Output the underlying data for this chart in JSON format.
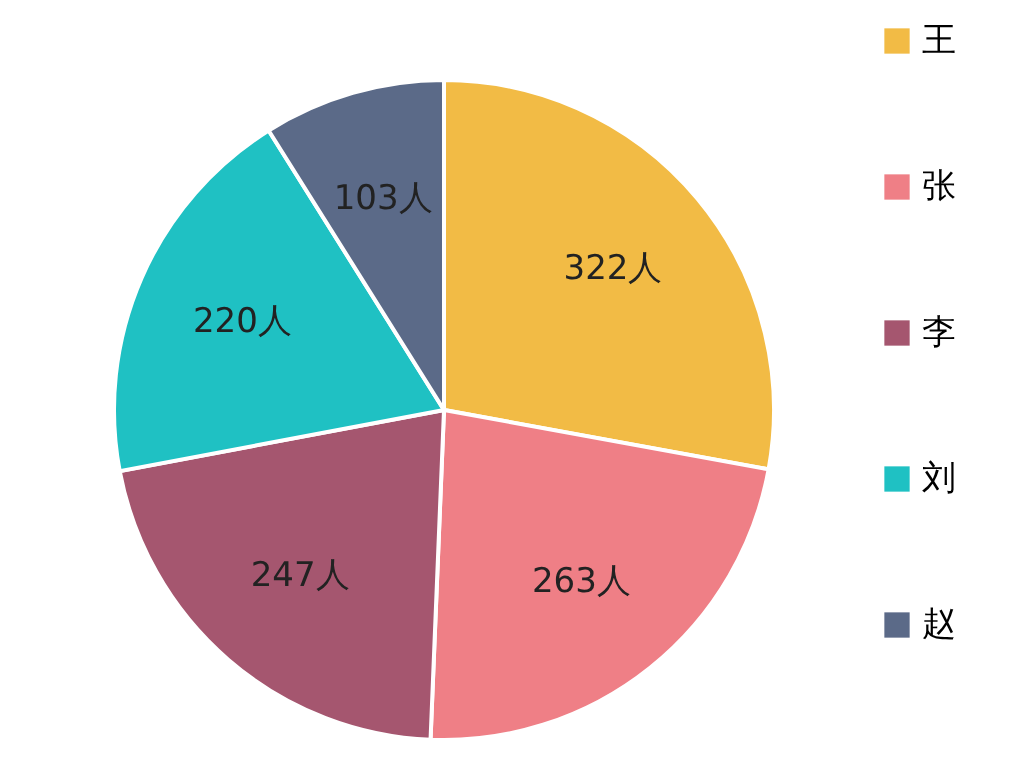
{
  "chart_data": {
    "type": "pie",
    "categories": [
      "王",
      "张",
      "李",
      "刘",
      "赵"
    ],
    "values": [
      322,
      263,
      247,
      220,
      103
    ],
    "colors": [
      "#f2bb45",
      "#ef7f86",
      "#a5566f",
      "#1fc1c3",
      "#5b6a88"
    ],
    "value_labels": [
      "322人",
      "263人",
      "247人",
      "220人",
      "103人"
    ],
    "legend": "right"
  }
}
